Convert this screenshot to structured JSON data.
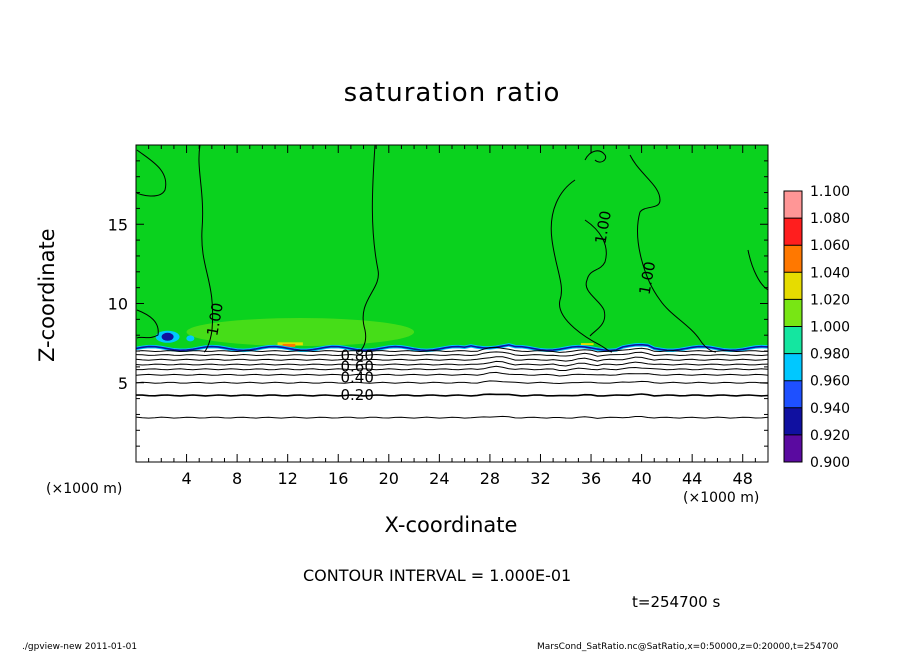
{
  "chart_data": {
    "type": "heatmap",
    "title": "saturation ratio",
    "xlabel": "X-coordinate",
    "ylabel": "Z-coordinate",
    "x_unit_label": "(×1000 m)",
    "xlim": [
      0,
      50
    ],
    "ylim": [
      0,
      20
    ],
    "x_ticks": [
      4,
      8,
      12,
      16,
      20,
      24,
      28,
      32,
      36,
      40,
      44,
      48
    ],
    "y_ticks": [
      5,
      10,
      15
    ],
    "colorbar": {
      "levels": [
        0.9,
        0.92,
        0.94,
        0.96,
        0.98,
        1.0,
        1.02,
        1.04,
        1.06,
        1.08,
        1.1
      ],
      "labels": [
        "0.900",
        "0.920",
        "0.940",
        "0.960",
        "0.980",
        "1.000",
        "1.020",
        "1.040",
        "1.060",
        "1.080",
        "1.100"
      ],
      "colors": [
        "#5a0aa0",
        "#1010a0",
        "#1e50ff",
        "#00c8ff",
        "#14e6a0",
        "#0ad21e",
        "#78e614",
        "#e6dc00",
        "#ff7800",
        "#ff1e1e",
        "#ff9696"
      ]
    },
    "contour_labels": [
      {
        "text": "1.00",
        "x": 6.3,
        "z": 9.0
      },
      {
        "text": "1.00",
        "x": 37.0,
        "z": 14.8
      },
      {
        "text": "1.00",
        "x": 40.5,
        "z": 11.6
      },
      {
        "text": "0.80",
        "x": 17.5,
        "z": 6.7
      },
      {
        "text": "0.60",
        "x": 17.5,
        "z": 6.0
      },
      {
        "text": "0.40",
        "x": 17.5,
        "z": 5.3
      },
      {
        "text": "0.20",
        "x": 17.5,
        "z": 4.2
      }
    ],
    "contour_interval": "CONTOUR INTERVAL = 1.000E-01",
    "time_label": "t=254700 s"
  },
  "footer": {
    "left": "./gpview-new   2011-01-01",
    "right": "MarsCond_SatRatio.nc@SatRatio,x=0:50000,z=0:20000,t=254700"
  }
}
